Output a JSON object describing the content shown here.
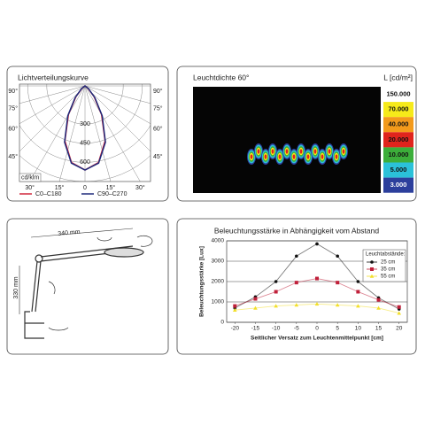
{
  "chart_data": [
    {
      "type": "polar",
      "title": "Lichtverteilungskurve",
      "unit_label": "cd/klm",
      "rlim": [
        0,
        750
      ],
      "rticks": [
        300,
        450,
        600
      ],
      "angle_ticks": [
        {
          "value": -90,
          "label": "90°"
        },
        {
          "value": -75,
          "label": "75°"
        },
        {
          "value": -60,
          "label": "60°"
        },
        {
          "value": -45,
          "label": "45°"
        },
        {
          "value": -30,
          "label": "30°"
        },
        {
          "value": -15,
          "label": "15°"
        },
        0,
        {
          "value": 15,
          "label": "15°"
        },
        {
          "value": 30,
          "label": "30°"
        },
        {
          "value": 45,
          "label": "45°"
        },
        {
          "value": 60,
          "label": "60°"
        },
        {
          "value": 75,
          "label": "75°"
        },
        {
          "value": 90,
          "label": "90°"
        }
      ],
      "angles": [
        -60,
        -50,
        -40,
        -30,
        -20,
        -10,
        0,
        10,
        20,
        30,
        40,
        50,
        60
      ],
      "series": [
        {
          "name": "C0–C180",
          "color": "#d0283c",
          "values": [
            0,
            30,
            110,
            260,
            460,
            610,
            660,
            610,
            460,
            260,
            110,
            30,
            0
          ]
        },
        {
          "name": "C90–C270",
          "color": "#1f2a7a",
          "values": [
            0,
            35,
            120,
            270,
            470,
            615,
            660,
            615,
            470,
            270,
            120,
            35,
            0
          ]
        }
      ],
      "grid": true
    },
    {
      "type": "heatmap",
      "title": "Leuchtdichte 60°",
      "unit_label": "L [cd/m²]",
      "scale": [
        {
          "value": 150000,
          "label": "150.000",
          "color": "#ffffff"
        },
        {
          "value": 70000,
          "label": "70.000",
          "color": "#f6ea1a"
        },
        {
          "value": 40000,
          "label": "40.000",
          "color": "#f39a1c"
        },
        {
          "value": 20000,
          "label": "20.000",
          "color": "#e0241d"
        },
        {
          "value": 10000,
          "label": "10.000",
          "color": "#3cae3a"
        },
        {
          "value": 5000,
          "label": "5.000",
          "color": "#2bc1d9"
        },
        {
          "value": 3000,
          "label": "3.000",
          "color": "#2c3f9c"
        }
      ]
    },
    {
      "type": "line",
      "title": "Beleuchtungsstärke in Abhängigkeit vom Abstand",
      "y_label": "Beleuchtungsstärke [Lux]",
      "x_label": "Seitlicher Versatz zum Leuchtenmittelpunkt [cm]",
      "x": [
        -20,
        -15,
        -10,
        -5,
        0,
        5,
        10,
        15,
        20
      ],
      "xlim": [
        -22,
        22
      ],
      "xticks": [
        -20,
        -15,
        -10,
        -5,
        0,
        5,
        10,
        15,
        20
      ],
      "ylim": [
        0,
        4000
      ],
      "yticks": [
        0,
        1000,
        2000,
        3000,
        4000
      ],
      "grid": true,
      "legend_title": "Leuchtabstände:",
      "legend": "upper right",
      "series": [
        {
          "name": "25 cm",
          "color": "#111111",
          "marker": "circle",
          "values": [
            700,
            1250,
            2000,
            3250,
            3850,
            3250,
            2000,
            1200,
            650
          ]
        },
        {
          "name": "35 cm",
          "color": "#c0203a",
          "marker": "square",
          "values": [
            800,
            1150,
            1500,
            1950,
            2150,
            1950,
            1500,
            1100,
            750
          ]
        },
        {
          "name": "55 cm",
          "color": "#f2df2a",
          "marker": "triangle",
          "values": [
            600,
            700,
            800,
            850,
            900,
            850,
            800,
            700,
            450
          ]
        }
      ]
    }
  ],
  "diagram": {
    "labels": [
      "340 mm",
      "330 mm"
    ]
  }
}
